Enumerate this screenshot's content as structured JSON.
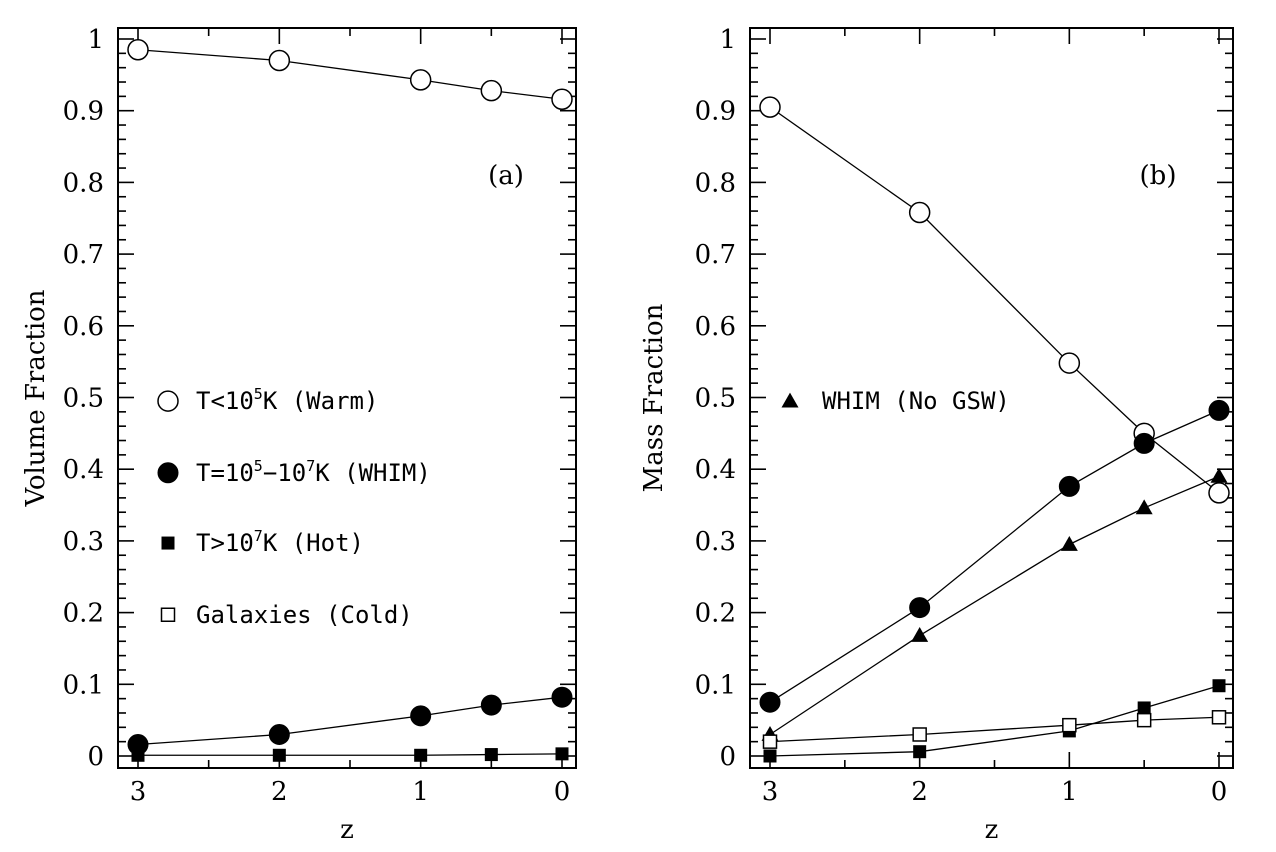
{
  "chart_data": [
    {
      "type": "line",
      "panel_label": "(a)",
      "xlabel": "z",
      "ylabel": "Volume Fraction",
      "xlim": [
        3,
        0
      ],
      "ylim": [
        0,
        1
      ],
      "xticks": [
        "3",
        "2",
        "1",
        "0"
      ],
      "yticks": [
        "0",
        "0.1",
        "0.2",
        "0.3",
        "0.4",
        "0.5",
        "0.6",
        "0.7",
        "0.8",
        "0.9",
        "1"
      ],
      "x": [
        3,
        2,
        1,
        0.5,
        0
      ],
      "series": [
        {
          "name": "Warm",
          "marker": "open-circle",
          "values": [
            0.985,
            0.97,
            0.943,
            0.928,
            0.916
          ]
        },
        {
          "name": "WHIM",
          "marker": "filled-circle",
          "values": [
            0.016,
            0.03,
            0.056,
            0.071,
            0.082
          ]
        },
        {
          "name": "Hot",
          "marker": "filled-square",
          "values": [
            0.001,
            0.001,
            0.001,
            0.002,
            0.003
          ]
        }
      ],
      "legend": [
        {
          "marker": "open-circle",
          "pre": "T<10",
          "sup": "5",
          "post": "K (Warm)"
        },
        {
          "marker": "filled-circle",
          "pre": "T=10",
          "sup": "5",
          "mid": "−10",
          "sup2": "7",
          "post": "K (WHIM)"
        },
        {
          "marker": "filled-square",
          "pre": "T>10",
          "sup": "7",
          "post": "K (Hot)"
        },
        {
          "marker": "open-square",
          "pre": "Galaxies (Cold)"
        }
      ]
    },
    {
      "type": "line",
      "panel_label": "(b)",
      "xlabel": "z",
      "ylabel": "Mass Fraction",
      "xlim": [
        3,
        0
      ],
      "ylim": [
        0,
        1
      ],
      "xticks": [
        "3",
        "2",
        "1",
        "0"
      ],
      "yticks": [
        "0",
        "0.1",
        "0.2",
        "0.3",
        "0.4",
        "0.5",
        "0.6",
        "0.7",
        "0.8",
        "0.9",
        "1"
      ],
      "x": [
        3,
        2,
        1,
        0.5,
        0
      ],
      "series": [
        {
          "name": "Warm",
          "marker": "open-circle",
          "values": [
            0.905,
            0.758,
            0.548,
            0.45,
            0.367
          ]
        },
        {
          "name": "WHIM",
          "marker": "filled-circle",
          "values": [
            0.075,
            0.207,
            0.376,
            0.436,
            0.482
          ]
        },
        {
          "name": "WHIM (No GSW)",
          "marker": "filled-triangle",
          "values": [
            0.03,
            0.168,
            0.295,
            0.346,
            0.39
          ]
        },
        {
          "name": "Hot",
          "marker": "filled-square",
          "values": [
            0.0,
            0.006,
            0.035,
            0.067,
            0.098
          ]
        },
        {
          "name": "Cold",
          "marker": "open-square",
          "values": [
            0.02,
            0.03,
            0.043,
            0.05,
            0.054
          ]
        }
      ],
      "legend": [
        {
          "marker": "filled-triangle",
          "pre": "WHIM (No GSW)"
        }
      ]
    }
  ]
}
